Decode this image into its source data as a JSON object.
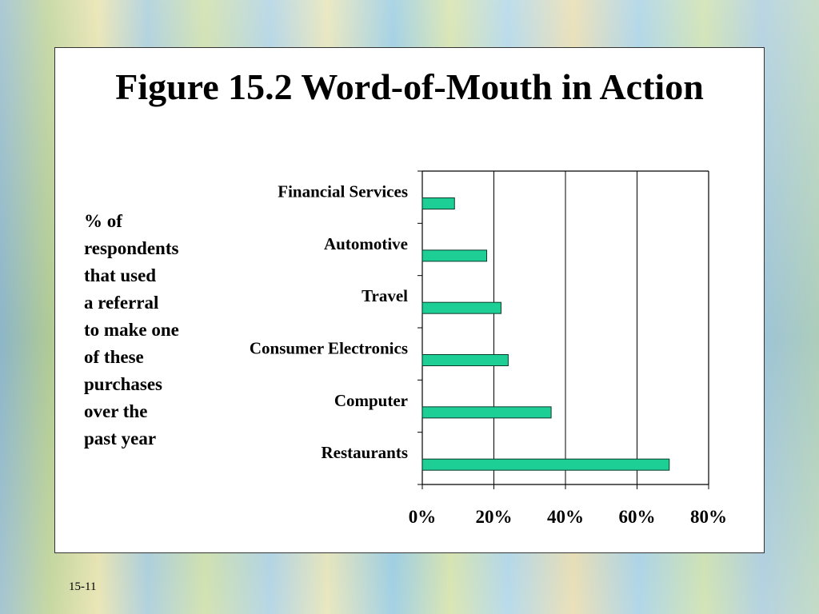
{
  "slide": {
    "title": "Figure 15.2 Word-of-Mouth in Action",
    "side_note_lines": [
      "% of",
      "respondents",
      "that used",
      "a referral",
      "to make one",
      "of these",
      "purchases",
      "over the",
      "past year"
    ],
    "slide_number": "15-11"
  },
  "colors": {
    "bar_fill": "#1ecf95",
    "bar_stroke": "#0a3a2a",
    "axis": "#000000"
  },
  "chart_data": {
    "type": "bar",
    "orientation": "horizontal",
    "categories": [
      "Financial Services",
      "Automotive",
      "Travel",
      "Consumer Electronics",
      "Computer",
      "Restaurants"
    ],
    "values": [
      9,
      18,
      22,
      24,
      36,
      69
    ],
    "xlim": [
      0,
      80
    ],
    "x_ticks": [
      "0%",
      "20%",
      "40%",
      "60%",
      "80%"
    ],
    "x_tick_values": [
      0,
      20,
      40,
      60,
      80
    ],
    "grid": "vertical lines"
  }
}
